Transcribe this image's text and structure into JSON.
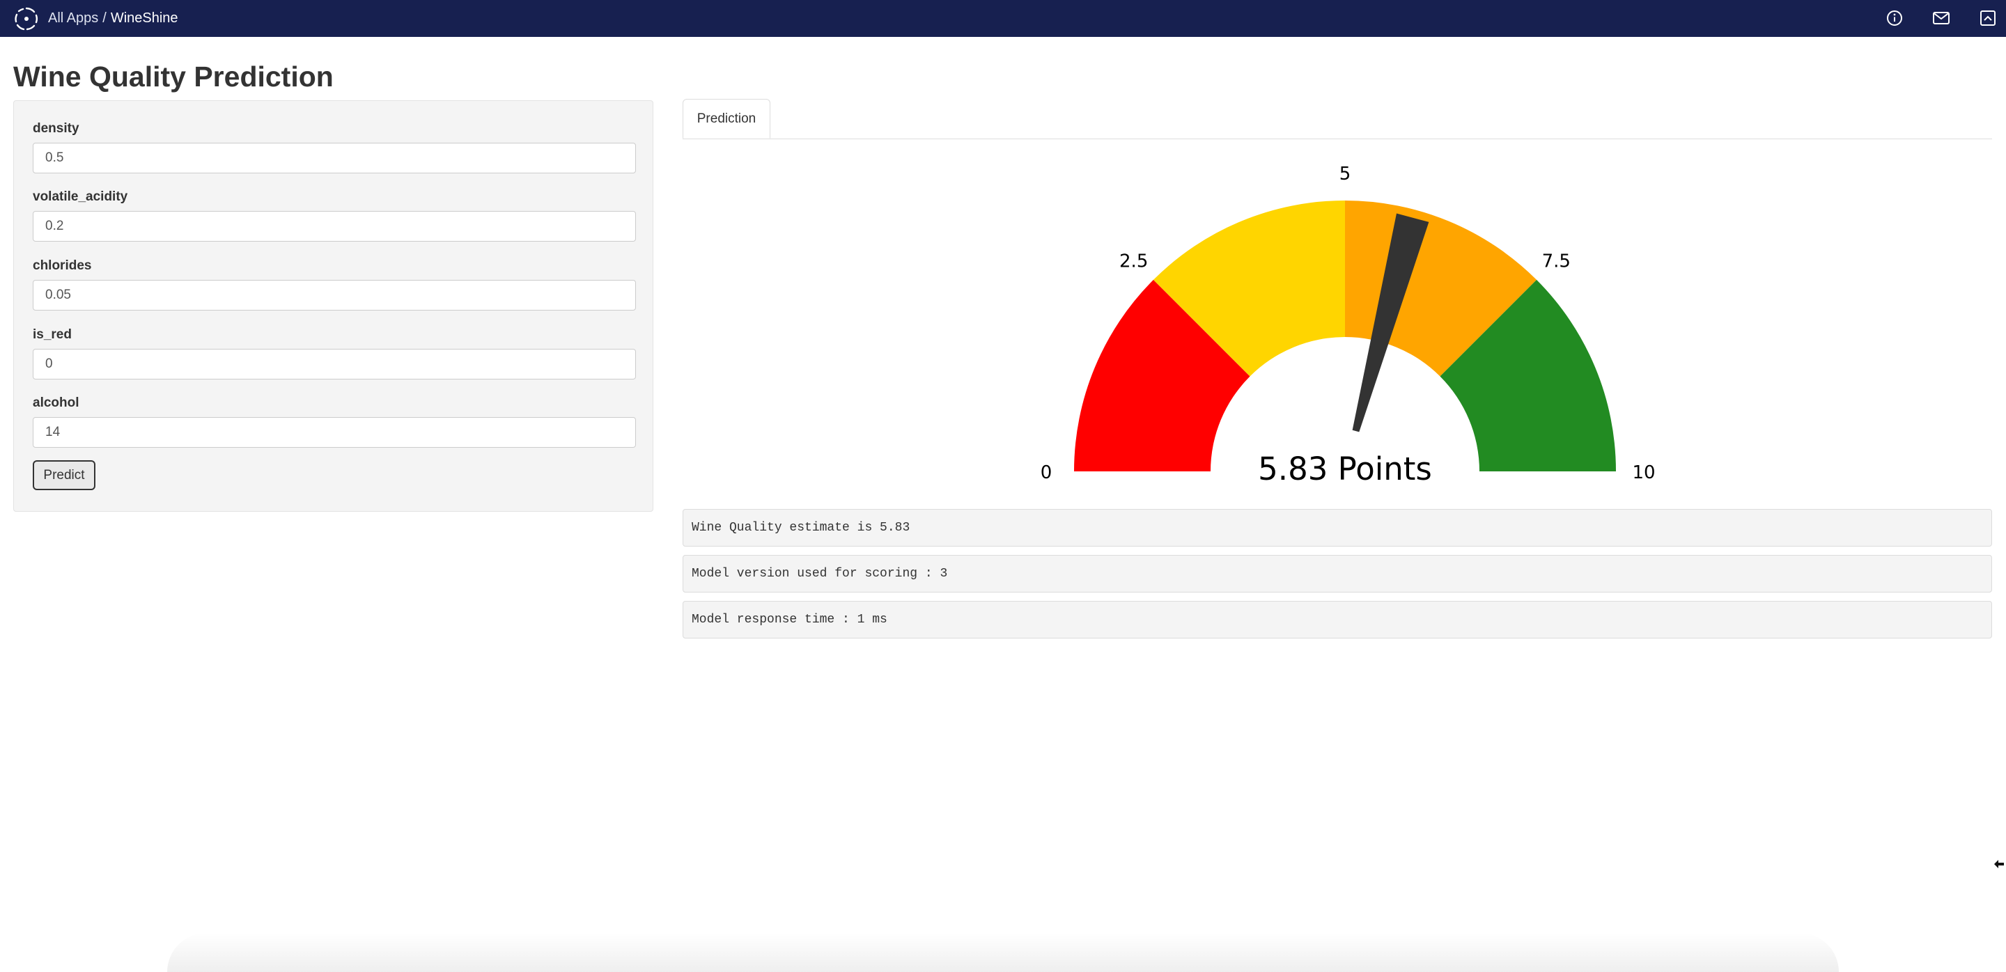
{
  "header": {
    "breadcrumb_root": "All Apps",
    "breadcrumb_separator": "/",
    "app_name": "WineShine",
    "icons": [
      "info-icon",
      "mail-icon",
      "collapse-icon"
    ]
  },
  "page": {
    "title": "Wine Quality Prediction"
  },
  "form": {
    "fields": [
      {
        "label": "density",
        "value": "0.5"
      },
      {
        "label": "volatile_acidity",
        "value": "0.2"
      },
      {
        "label": "chlorides",
        "value": "0.05"
      },
      {
        "label": "is_red",
        "value": "0"
      },
      {
        "label": "alcohol",
        "value": "14"
      }
    ],
    "predict_label": "Predict"
  },
  "tabs": [
    {
      "label": "Prediction",
      "active": true
    }
  ],
  "gauge": {
    "min": 0,
    "max": 10,
    "value": 5.83,
    "tick_labels": [
      "0",
      "2.5",
      "5",
      "7.5",
      "10"
    ],
    "center_label": "5.83 Points",
    "bands": [
      {
        "from": 0,
        "to": 2.5,
        "color": "#ff0000"
      },
      {
        "from": 2.5,
        "to": 5,
        "color": "#ffd500"
      },
      {
        "from": 5,
        "to": 7.5,
        "color": "#ffa500"
      },
      {
        "from": 7.5,
        "to": 10,
        "color": "#228b22"
      }
    ],
    "needle_color": "#333333"
  },
  "outputs": [
    "Wine Quality estimate is 5.83",
    "Model version used for scoring : 3",
    "Model response time : 1 ms"
  ]
}
